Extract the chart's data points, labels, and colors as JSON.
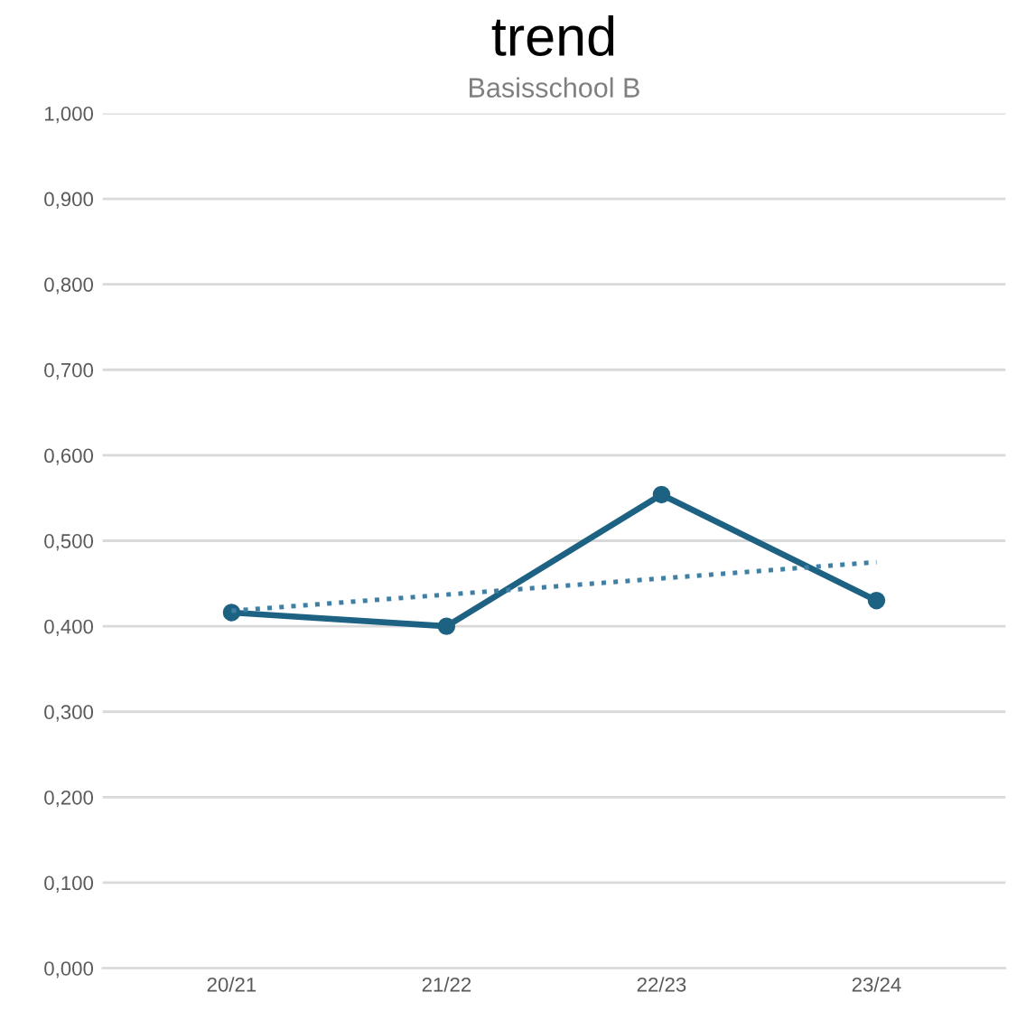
{
  "chart_data": {
    "type": "line",
    "title": "trend",
    "subtitle": "Basisschool B",
    "categories": [
      "20/21",
      "21/22",
      "22/23",
      "23/24"
    ],
    "series": [
      {
        "color": "#1d6282",
        "values": [
          0.416,
          0.4,
          0.554,
          0.43
        ],
        "marker": "circle",
        "line_style": "solid"
      },
      {
        "color": "#3f7fa3",
        "x": [
          "20/21",
          "23/24"
        ],
        "values": [
          0.418,
          0.475
        ],
        "marker": "none",
        "line_style": "dotted"
      }
    ],
    "ylim": [
      0,
      1.0
    ],
    "yticks": [
      {
        "value": 0,
        "label": "0,000"
      },
      {
        "value": 0.1,
        "label": "0,100"
      },
      {
        "value": 0.2,
        "label": "0,200"
      },
      {
        "value": 0.3,
        "label": "0,300"
      },
      {
        "value": 0.4,
        "label": "0,400"
      },
      {
        "value": 0.5,
        "label": "0,500"
      },
      {
        "value": 0.6,
        "label": "0,600"
      },
      {
        "value": 0.7,
        "label": "0,700"
      },
      {
        "value": 0.8,
        "label": "0,800"
      },
      {
        "value": 0.9,
        "label": "0,900"
      },
      {
        "value": 1.0,
        "label": "1,000"
      }
    ],
    "grid": "y"
  }
}
